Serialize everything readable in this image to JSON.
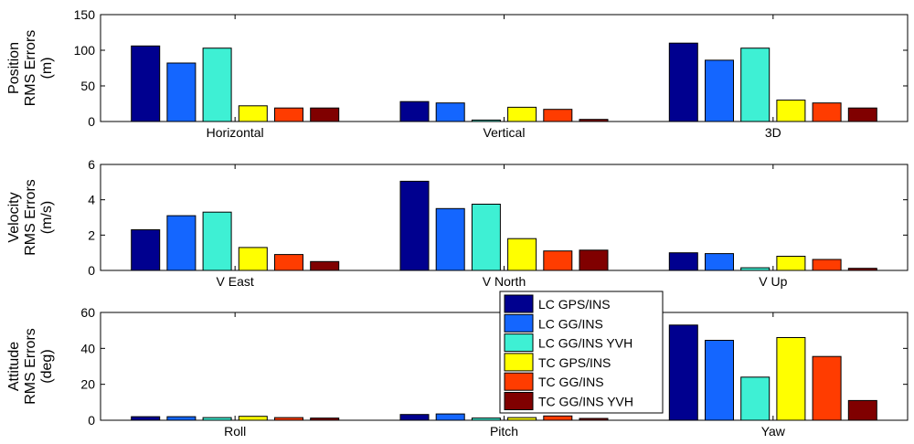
{
  "legend": [
    "LC GPS/INS",
    "LC GG/INS",
    "LC GG/INS YVH",
    "TC GPS/INS",
    "TC GG/INS",
    "TC GG/INS YVH"
  ],
  "series_colors": [
    "#00008f",
    "#1466ff",
    "#3ef0d4",
    "#ffff00",
    "#ff3c00",
    "#800000"
  ],
  "chart_data": [
    {
      "type": "bar",
      "title": "",
      "ylabel_lines": [
        "Position",
        "RMS Errors",
        "(m)"
      ],
      "xlabel": "",
      "categories": [
        "Horizontal",
        "Vertical",
        "3D"
      ],
      "ylim": [
        0,
        150
      ],
      "yticks": [
        0,
        50,
        100,
        150
      ],
      "series": [
        {
          "name": "LC GPS/INS",
          "values": [
            106,
            28,
            110
          ]
        },
        {
          "name": "LC GG/INS",
          "values": [
            82,
            26,
            86
          ]
        },
        {
          "name": "LC GG/INS YVH",
          "values": [
            103,
            2,
            103
          ]
        },
        {
          "name": "TC GPS/INS",
          "values": [
            22,
            20,
            30
          ]
        },
        {
          "name": "TC GG/INS",
          "values": [
            19,
            17,
            26
          ]
        },
        {
          "name": "TC GG/INS YVH",
          "values": [
            19,
            3,
            19
          ]
        }
      ]
    },
    {
      "type": "bar",
      "title": "",
      "ylabel_lines": [
        "Velocity",
        "RMS Errors",
        "(m/s)"
      ],
      "xlabel": "",
      "categories": [
        "V East",
        "V North",
        "V Up"
      ],
      "ylim": [
        0,
        6
      ],
      "yticks": [
        0,
        2,
        4,
        6
      ],
      "series": [
        {
          "name": "LC GPS/INS",
          "values": [
            2.3,
            5.05,
            1.0
          ]
        },
        {
          "name": "LC GG/INS",
          "values": [
            3.1,
            3.5,
            0.95
          ]
        },
        {
          "name": "LC GG/INS YVH",
          "values": [
            3.3,
            3.75,
            0.15
          ]
        },
        {
          "name": "TC GPS/INS",
          "values": [
            1.3,
            1.8,
            0.8
          ]
        },
        {
          "name": "TC GG/INS",
          "values": [
            0.9,
            1.1,
            0.62
          ]
        },
        {
          "name": "TC GG/INS YVH",
          "values": [
            0.5,
            1.15,
            0.12
          ]
        }
      ]
    },
    {
      "type": "bar",
      "title": "",
      "ylabel_lines": [
        "Attitude",
        "RMS Errors",
        "(deg)"
      ],
      "xlabel": "",
      "categories": [
        "Roll",
        "Pitch",
        "Yaw"
      ],
      "ylim": [
        0,
        60
      ],
      "yticks": [
        0,
        20,
        40,
        60
      ],
      "series": [
        {
          "name": "LC GPS/INS",
          "values": [
            2,
            3.2,
            53
          ]
        },
        {
          "name": "LC GG/INS",
          "values": [
            2,
            3.5,
            44.5
          ]
        },
        {
          "name": "LC GG/INS YVH",
          "values": [
            1.5,
            1.2,
            24
          ]
        },
        {
          "name": "TC GPS/INS",
          "values": [
            2.2,
            1.5,
            46
          ]
        },
        {
          "name": "TC GG/INS",
          "values": [
            1.5,
            2.4,
            35.5
          ]
        },
        {
          "name": "TC GG/INS YVH",
          "values": [
            1.2,
            1.0,
            11
          ]
        }
      ]
    }
  ]
}
